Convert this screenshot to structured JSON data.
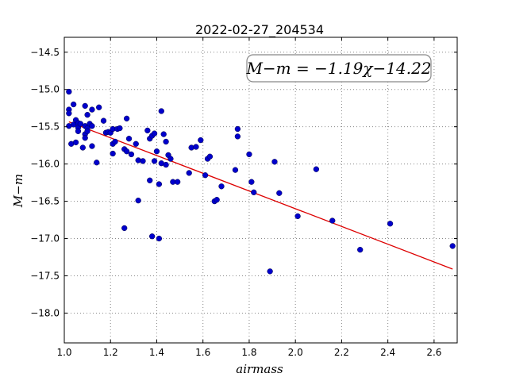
{
  "chart_data": {
    "type": "scatter",
    "title": "2022-02-27_204534",
    "xlabel": "airmass",
    "ylabel": "M−m",
    "xlim": [
      1.0,
      2.7
    ],
    "ylim": [
      -18.4,
      -14.3
    ],
    "y_inverted": true,
    "grid": true,
    "xticks": [
      1.0,
      1.2,
      1.4,
      1.6,
      1.8,
      2.0,
      2.2,
      2.4,
      2.6
    ],
    "xtick_labels": [
      "1.0",
      "1.2",
      "1.4",
      "1.6",
      "1.8",
      "2.0",
      "2.2",
      "2.4",
      "2.6"
    ],
    "yticks": [
      -14.5,
      -15.0,
      -15.5,
      -16.0,
      -16.5,
      -17.0,
      -17.5,
      -18.0
    ],
    "ytick_labels": [
      "−14.5",
      "−15.0",
      "−15.5",
      "−16.0",
      "−16.5",
      "−17.0",
      "−17.5",
      "−18.0"
    ],
    "annotation": "M−m = −1.19χ−14.22",
    "fit": {
      "slope": -1.19,
      "intercept": -14.22,
      "x_range": [
        1.02,
        2.68
      ]
    },
    "colors": {
      "points": "#0000cc",
      "fit": "#dd0000",
      "grid": "#888888"
    },
    "points": [
      [
        1.02,
        -15.03
      ],
      [
        1.02,
        -15.27
      ],
      [
        1.02,
        -15.32
      ],
      [
        1.02,
        -15.49
      ],
      [
        1.03,
        -15.73
      ],
      [
        1.04,
        -15.2
      ],
      [
        1.04,
        -15.47
      ],
      [
        1.05,
        -15.71
      ],
      [
        1.05,
        -15.41
      ],
      [
        1.06,
        -15.45
      ],
      [
        1.06,
        -15.51
      ],
      [
        1.06,
        -15.56
      ],
      [
        1.07,
        -15.46
      ],
      [
        1.08,
        -15.78
      ],
      [
        1.09,
        -15.22
      ],
      [
        1.09,
        -15.49
      ],
      [
        1.09,
        -15.6
      ],
      [
        1.09,
        -15.65
      ],
      [
        1.1,
        -15.52
      ],
      [
        1.1,
        -15.34
      ],
      [
        1.1,
        -15.56
      ],
      [
        1.11,
        -15.46
      ],
      [
        1.12,
        -15.49
      ],
      [
        1.12,
        -15.27
      ],
      [
        1.12,
        -15.76
      ],
      [
        1.14,
        -15.98
      ],
      [
        1.15,
        -15.24
      ],
      [
        1.17,
        -15.42
      ],
      [
        1.18,
        -15.58
      ],
      [
        1.19,
        -15.57
      ],
      [
        1.2,
        -15.58
      ],
      [
        1.21,
        -15.53
      ],
      [
        1.21,
        -15.73
      ],
      [
        1.21,
        -15.86
      ],
      [
        1.22,
        -15.7
      ],
      [
        1.23,
        -15.53
      ],
      [
        1.24,
        -15.52
      ],
      [
        1.26,
        -15.8
      ],
      [
        1.27,
        -15.83
      ],
      [
        1.27,
        -15.39
      ],
      [
        1.28,
        -15.66
      ],
      [
        1.29,
        -15.87
      ],
      [
        1.31,
        -15.73
      ],
      [
        1.32,
        -15.95
      ],
      [
        1.32,
        -16.49
      ],
      [
        1.26,
        -16.86
      ],
      [
        1.34,
        -15.96
      ],
      [
        1.36,
        -15.55
      ],
      [
        1.37,
        -16.22
      ],
      [
        1.37,
        -15.66
      ],
      [
        1.38,
        -15.62
      ],
      [
        1.38,
        -16.97
      ],
      [
        1.39,
        -15.59
      ],
      [
        1.39,
        -15.96
      ],
      [
        1.4,
        -15.83
      ],
      [
        1.41,
        -16.27
      ],
      [
        1.41,
        -17.0
      ],
      [
        1.42,
        -15.99
      ],
      [
        1.42,
        -15.29
      ],
      [
        1.43,
        -15.6
      ],
      [
        1.44,
        -15.7
      ],
      [
        1.44,
        -16.01
      ],
      [
        1.45,
        -15.88
      ],
      [
        1.46,
        -15.93
      ],
      [
        1.47,
        -16.24
      ],
      [
        1.49,
        -16.24
      ],
      [
        1.54,
        -16.12
      ],
      [
        1.55,
        -15.78
      ],
      [
        1.57,
        -15.77
      ],
      [
        1.59,
        -15.68
      ],
      [
        1.61,
        -16.15
      ],
      [
        1.62,
        -15.93
      ],
      [
        1.63,
        -15.9
      ],
      [
        1.65,
        -16.5
      ],
      [
        1.66,
        -16.48
      ],
      [
        1.68,
        -16.3
      ],
      [
        1.74,
        -16.08
      ],
      [
        1.75,
        -15.53
      ],
      [
        1.75,
        -15.63
      ],
      [
        1.8,
        -15.87
      ],
      [
        1.81,
        -16.24
      ],
      [
        1.82,
        -16.38
      ],
      [
        1.89,
        -17.44
      ],
      [
        1.91,
        -15.97
      ],
      [
        1.93,
        -16.39
      ],
      [
        2.01,
        -16.7
      ],
      [
        2.09,
        -16.07
      ],
      [
        2.16,
        -16.76
      ],
      [
        2.28,
        -17.15
      ],
      [
        2.41,
        -16.8
      ],
      [
        2.68,
        -17.1
      ]
    ]
  }
}
